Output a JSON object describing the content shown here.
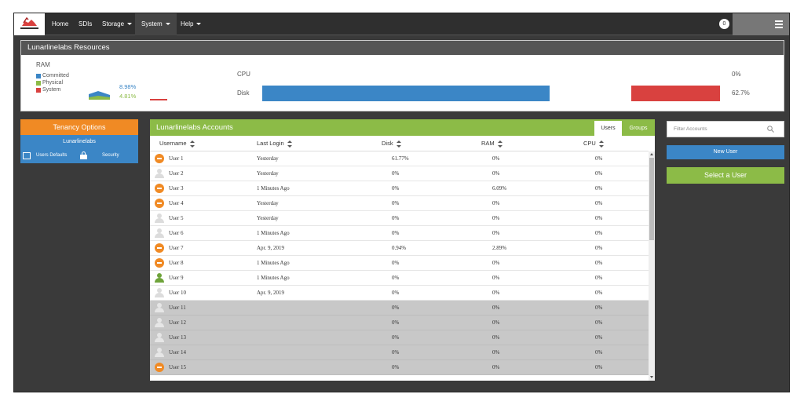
{
  "nav": {
    "items": [
      {
        "label": "Home",
        "dropdown": false,
        "active": false
      },
      {
        "label": "SDIs",
        "dropdown": false,
        "active": false
      },
      {
        "label": "Storage",
        "dropdown": true,
        "active": false
      },
      {
        "label": "System",
        "dropdown": true,
        "active": true
      },
      {
        "label": "Help",
        "dropdown": true,
        "active": false
      }
    ],
    "notification_count": "0"
  },
  "resources": {
    "title": "Lunarlinelabs Resources",
    "ram_label": "RAM",
    "legend": [
      {
        "label": "Committed",
        "color": "#3b86c6"
      },
      {
        "label": "Physical",
        "color": "#8cbb47"
      },
      {
        "label": "System",
        "color": "#d9413f"
      }
    ],
    "ram_committed_pct": "8.98%",
    "ram_physical_pct": "4.81%",
    "cpu_label": "CPU",
    "cpu_value": "0%",
    "cpu_fraction": 0,
    "disk_label": "Disk",
    "disk_value": "62.7%",
    "disk_fraction": 0.627
  },
  "left": {
    "tenancy_title": "Tenancy Options",
    "tenant_name": "Lunarlinelabs",
    "users_defaults": "Users Defaults",
    "security": "Security"
  },
  "accounts": {
    "title": "Lunarlinelabs Accounts",
    "tab_users": "Users",
    "tab_groups": "Groups",
    "columns": [
      "Username",
      "Last Login",
      "Disk",
      "RAM",
      "CPU"
    ],
    "rows": [
      {
        "icon": "minus",
        "name": "User 1",
        "last": "Yesterday",
        "disk": "61.77%",
        "ram": "0%",
        "cpu": "0%",
        "grey": false
      },
      {
        "icon": "person-grey",
        "name": "User 2",
        "last": "Yesterday",
        "disk": "0%",
        "ram": "0%",
        "cpu": "0%",
        "grey": false
      },
      {
        "icon": "minus",
        "name": "User 3",
        "last": "1 Minutes Ago",
        "disk": "0%",
        "ram": "6.09%",
        "cpu": "0%",
        "grey": false
      },
      {
        "icon": "minus",
        "name": "User 4",
        "last": "Yesterday",
        "disk": "0%",
        "ram": "0%",
        "cpu": "0%",
        "grey": false
      },
      {
        "icon": "person-grey",
        "name": "User 5",
        "last": "Yesterday",
        "disk": "0%",
        "ram": "0%",
        "cpu": "0%",
        "grey": false
      },
      {
        "icon": "person-grey",
        "name": "User 6",
        "last": "1 Minutes Ago",
        "disk": "0%",
        "ram": "0%",
        "cpu": "0%",
        "grey": false
      },
      {
        "icon": "minus",
        "name": "User 7",
        "last": "Apr. 9, 2019",
        "disk": "0.94%",
        "ram": "2.89%",
        "cpu": "0%",
        "grey": false
      },
      {
        "icon": "minus",
        "name": "User 8",
        "last": "1 Minutes Ago",
        "disk": "0%",
        "ram": "0%",
        "cpu": "0%",
        "grey": false
      },
      {
        "icon": "person-green",
        "name": "User 9",
        "last": "1 Minutes Ago",
        "disk": "0%",
        "ram": "0%",
        "cpu": "0%",
        "grey": false
      },
      {
        "icon": "person-grey",
        "name": "User 10",
        "last": "Apr. 9, 2019",
        "disk": "0%",
        "ram": "0%",
        "cpu": "0%",
        "grey": false
      },
      {
        "icon": "person-grey",
        "name": "User 11",
        "last": "",
        "disk": "0%",
        "ram": "0%",
        "cpu": "0%",
        "grey": true
      },
      {
        "icon": "person-grey",
        "name": "User 12",
        "last": "",
        "disk": "0%",
        "ram": "0%",
        "cpu": "0%",
        "grey": true
      },
      {
        "icon": "person-grey",
        "name": "User 13",
        "last": "",
        "disk": "0%",
        "ram": "0%",
        "cpu": "0%",
        "grey": true
      },
      {
        "icon": "person-grey",
        "name": "User 14",
        "last": "",
        "disk": "0%",
        "ram": "0%",
        "cpu": "0%",
        "grey": true
      },
      {
        "icon": "minus",
        "name": "User 15",
        "last": "",
        "disk": "0%",
        "ram": "0%",
        "cpu": "0%",
        "grey": true
      }
    ]
  },
  "right": {
    "filter_placeholder": "Filter Accounts",
    "new_user": "New User",
    "select_user": "Select a User"
  },
  "colors": {
    "orange": "#f08a24",
    "blue": "#3b86c6",
    "green": "#8cbb47",
    "red": "#d9413f"
  }
}
